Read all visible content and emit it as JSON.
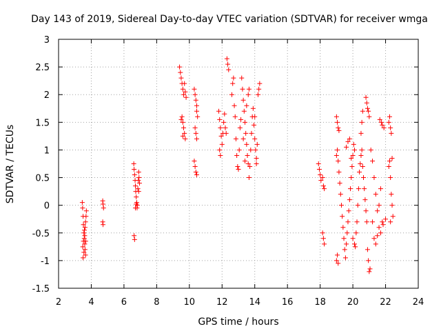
{
  "chart_data": {
    "type": "scatter",
    "title": "Day 143 of 2019, Sidereal Day-to-day VTEC variation (SDTVAR) for receiver wmga",
    "xlabel": "GPS time / hours",
    "ylabel": "SDTVAR / TECUs",
    "xlim": [
      2,
      24
    ],
    "ylim": [
      -1.5,
      3
    ],
    "xticks": [
      "2",
      "4",
      "6",
      "8",
      "10",
      "12",
      "14",
      "16",
      "18",
      "20",
      "22",
      "24"
    ],
    "yticks": [
      "-1.5",
      "-1",
      "-0.5",
      "0",
      "0.5",
      "1",
      "1.5",
      "2",
      "2.5",
      "3"
    ],
    "grid": true,
    "marker": "plus",
    "color": "#ff0000",
    "series": [
      {
        "name": "SDTVAR",
        "points": [
          [
            3.45,
            0.05
          ],
          [
            3.47,
            -0.05
          ],
          [
            3.5,
            -0.2
          ],
          [
            3.52,
            -0.35
          ],
          [
            3.55,
            -0.5
          ],
          [
            3.57,
            -0.6
          ],
          [
            3.6,
            -0.7
          ],
          [
            3.62,
            -0.8
          ],
          [
            3.65,
            -0.9
          ],
          [
            3.5,
            -0.95
          ],
          [
            3.55,
            -0.85
          ],
          [
            3.6,
            -0.55
          ],
          [
            3.62,
            -0.4
          ],
          [
            3.65,
            -0.3
          ],
          [
            3.68,
            -0.2
          ],
          [
            3.7,
            -0.1
          ],
          [
            3.58,
            -0.45
          ],
          [
            3.52,
            -0.65
          ],
          [
            3.48,
            -0.75
          ],
          [
            3.66,
            -0.65
          ],
          [
            4.7,
            0.08
          ],
          [
            4.72,
            0.02
          ],
          [
            4.75,
            -0.05
          ],
          [
            4.7,
            -0.3
          ],
          [
            4.72,
            -0.35
          ],
          [
            6.6,
            0.75
          ],
          [
            6.62,
            0.65
          ],
          [
            6.65,
            0.55
          ],
          [
            6.68,
            0.45
          ],
          [
            6.7,
            0.35
          ],
          [
            6.72,
            0.25
          ],
          [
            6.75,
            0.15
          ],
          [
            6.78,
            0.05
          ],
          [
            6.8,
            -0.05
          ],
          [
            6.82,
            0.0
          ],
          [
            6.85,
            0.3
          ],
          [
            6.88,
            0.45
          ],
          [
            6.9,
            0.6
          ],
          [
            6.92,
            0.5
          ],
          [
            6.95,
            0.4
          ],
          [
            6.7,
            -0.05
          ],
          [
            6.75,
            0.02
          ],
          [
            6.62,
            -0.55
          ],
          [
            6.65,
            -0.62
          ],
          [
            6.9,
            0.25
          ],
          [
            9.4,
            2.5
          ],
          [
            9.45,
            2.4
          ],
          [
            9.5,
            2.3
          ],
          [
            9.55,
            2.2
          ],
          [
            9.6,
            2.1
          ],
          [
            9.65,
            2.0
          ],
          [
            9.7,
            2.2
          ],
          [
            9.75,
            2.05
          ],
          [
            9.8,
            1.95
          ],
          [
            9.55,
            1.6
          ],
          [
            9.6,
            1.5
          ],
          [
            9.65,
            1.4
          ],
          [
            9.7,
            1.3
          ],
          [
            9.75,
            1.2
          ],
          [
            9.5,
            1.55
          ],
          [
            9.6,
            1.25
          ],
          [
            10.3,
            2.1
          ],
          [
            10.35,
            2.0
          ],
          [
            10.4,
            1.9
          ],
          [
            10.45,
            1.7
          ],
          [
            10.5,
            1.6
          ],
          [
            10.45,
            1.8
          ],
          [
            10.35,
            1.4
          ],
          [
            10.4,
            1.3
          ],
          [
            10.45,
            1.2
          ],
          [
            10.3,
            0.8
          ],
          [
            10.35,
            0.7
          ],
          [
            10.4,
            0.6
          ],
          [
            10.45,
            0.55
          ],
          [
            11.8,
            1.7
          ],
          [
            11.85,
            1.55
          ],
          [
            11.9,
            1.4
          ],
          [
            11.95,
            1.25
          ],
          [
            12.0,
            1.1
          ],
          [
            11.85,
            1.0
          ],
          [
            11.9,
            0.9
          ],
          [
            12.05,
            1.3
          ],
          [
            12.1,
            1.5
          ],
          [
            12.15,
            1.65
          ],
          [
            12.2,
            1.4
          ],
          [
            12.25,
            1.3
          ],
          [
            12.3,
            2.65
          ],
          [
            12.35,
            2.55
          ],
          [
            12.4,
            2.45
          ],
          [
            12.6,
            2.0
          ],
          [
            12.65,
            2.2
          ],
          [
            12.7,
            2.3
          ],
          [
            12.75,
            1.8
          ],
          [
            12.8,
            1.6
          ],
          [
            12.85,
            1.2
          ],
          [
            12.9,
            0.9
          ],
          [
            12.95,
            0.7
          ],
          [
            13.0,
            0.65
          ],
          [
            13.05,
            1.0
          ],
          [
            13.1,
            1.4
          ],
          [
            13.15,
            1.55
          ],
          [
            13.2,
            2.3
          ],
          [
            13.25,
            2.1
          ],
          [
            13.3,
            1.9
          ],
          [
            13.35,
            1.7
          ],
          [
            13.4,
            1.5
          ],
          [
            13.45,
            1.3
          ],
          [
            13.5,
            1.1
          ],
          [
            13.55,
            0.9
          ],
          [
            13.6,
            0.75
          ],
          [
            13.65,
            0.5
          ],
          [
            13.7,
            0.7
          ],
          [
            13.75,
            1.0
          ],
          [
            13.8,
            1.3
          ],
          [
            13.85,
            1.6
          ],
          [
            13.9,
            1.75
          ],
          [
            13.95,
            1.45
          ],
          [
            14.0,
            1.2
          ],
          [
            14.05,
            1.0
          ],
          [
            14.1,
            0.85
          ],
          [
            14.15,
            1.1
          ],
          [
            14.2,
            2.0
          ],
          [
            14.25,
            2.1
          ],
          [
            14.3,
            2.2
          ],
          [
            13.6,
            2.0
          ],
          [
            13.65,
            2.1
          ],
          [
            13.3,
            1.2
          ],
          [
            13.4,
            0.8
          ],
          [
            13.5,
            1.8
          ],
          [
            14.0,
            1.6
          ],
          [
            14.1,
            0.75
          ],
          [
            17.9,
            0.75
          ],
          [
            17.95,
            0.65
          ],
          [
            18.0,
            0.55
          ],
          [
            18.05,
            0.45
          ],
          [
            18.15,
            0.5
          ],
          [
            18.2,
            0.35
          ],
          [
            18.25,
            0.3
          ],
          [
            18.15,
            -0.5
          ],
          [
            18.2,
            -0.6
          ],
          [
            18.25,
            -0.7
          ],
          [
            19.0,
            1.6
          ],
          [
            19.05,
            1.5
          ],
          [
            19.1,
            1.4
          ],
          [
            19.15,
            1.35
          ],
          [
            19.0,
            0.9
          ],
          [
            19.05,
            1.0
          ],
          [
            19.1,
            0.8
          ],
          [
            19.15,
            0.6
          ],
          [
            19.2,
            0.4
          ],
          [
            19.25,
            0.2
          ],
          [
            19.3,
            0.0
          ],
          [
            19.35,
            -0.2
          ],
          [
            19.4,
            -0.4
          ],
          [
            19.45,
            -0.6
          ],
          [
            19.5,
            -0.8
          ],
          [
            19.55,
            -0.95
          ],
          [
            19.0,
            -1.0
          ],
          [
            19.05,
            -0.9
          ],
          [
            19.1,
            -1.05
          ],
          [
            19.6,
            -0.7
          ],
          [
            19.65,
            -0.5
          ],
          [
            19.7,
            -0.3
          ],
          [
            19.75,
            -0.1
          ],
          [
            19.8,
            0.1
          ],
          [
            19.85,
            0.3
          ],
          [
            19.9,
            0.5
          ],
          [
            19.95,
            0.7
          ],
          [
            20.0,
            0.9
          ],
          [
            20.05,
            1.1
          ],
          [
            20.1,
            1.0
          ],
          [
            19.6,
            1.05
          ],
          [
            19.7,
            1.15
          ],
          [
            19.8,
            1.2
          ],
          [
            19.9,
            0.85
          ],
          [
            20.0,
            -0.6
          ],
          [
            20.1,
            -0.7
          ],
          [
            20.15,
            -0.75
          ],
          [
            20.2,
            -0.5
          ],
          [
            20.25,
            -0.3
          ],
          [
            20.3,
            0.0
          ],
          [
            20.35,
            0.3
          ],
          [
            20.4,
            0.6
          ],
          [
            20.45,
            0.75
          ],
          [
            20.5,
            0.9
          ],
          [
            20.55,
            1.0
          ],
          [
            20.6,
            0.7
          ],
          [
            20.65,
            0.5
          ],
          [
            20.7,
            0.3
          ],
          [
            20.75,
            0.1
          ],
          [
            20.8,
            -0.1
          ],
          [
            20.85,
            -0.3
          ],
          [
            20.9,
            -0.8
          ],
          [
            20.95,
            -1.0
          ],
          [
            21.0,
            -1.2
          ],
          [
            21.05,
            -1.15
          ],
          [
            20.8,
            1.95
          ],
          [
            20.85,
            1.85
          ],
          [
            20.9,
            1.75
          ],
          [
            20.95,
            1.7
          ],
          [
            21.0,
            1.6
          ],
          [
            20.5,
            1.3
          ],
          [
            20.55,
            1.5
          ],
          [
            20.6,
            1.7
          ],
          [
            21.1,
            1.0
          ],
          [
            21.2,
            0.8
          ],
          [
            21.3,
            0.5
          ],
          [
            21.4,
            0.2
          ],
          [
            21.5,
            -0.1
          ],
          [
            21.6,
            -0.4
          ],
          [
            21.7,
            -0.5
          ],
          [
            21.2,
            -0.3
          ],
          [
            21.3,
            -0.6
          ],
          [
            21.4,
            -0.7
          ],
          [
            21.5,
            -0.55
          ],
          [
            21.6,
            0.0
          ],
          [
            21.7,
            0.3
          ],
          [
            21.75,
            1.5
          ],
          [
            21.8,
            1.45
          ],
          [
            21.9,
            1.4
          ],
          [
            21.65,
            1.55
          ],
          [
            22.2,
            1.5
          ],
          [
            22.25,
            1.6
          ],
          [
            22.3,
            1.4
          ],
          [
            22.35,
            1.3
          ],
          [
            22.2,
            0.7
          ],
          [
            22.25,
            0.8
          ],
          [
            22.3,
            0.5
          ],
          [
            22.35,
            0.2
          ],
          [
            22.4,
            0.0
          ],
          [
            22.45,
            -0.2
          ],
          [
            22.3,
            -0.3
          ],
          [
            22.4,
            0.85
          ],
          [
            21.8,
            -0.3
          ],
          [
            21.85,
            -0.35
          ],
          [
            22.0,
            -0.25
          ]
        ]
      }
    ]
  }
}
